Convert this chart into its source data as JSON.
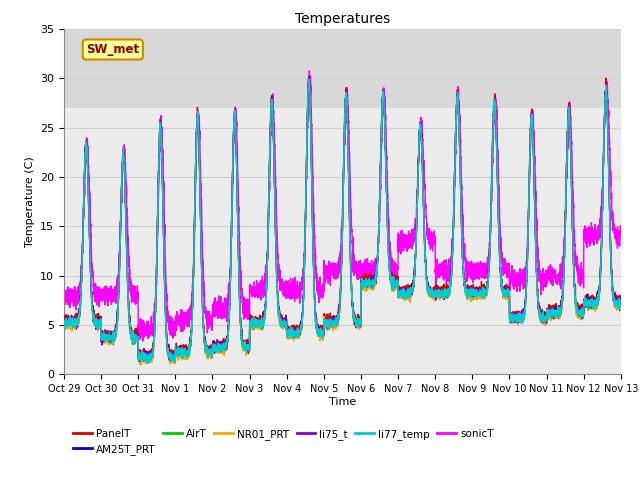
{
  "title": "Temperatures",
  "xlabel": "Time",
  "ylabel": "Temperature (C)",
  "ylim": [
    0,
    35
  ],
  "x_tick_labels": [
    "Oct 29",
    "Oct 30",
    "Oct 31",
    "Nov 1",
    "Nov 2",
    "Nov 3",
    "Nov 4",
    "Nov 5",
    "Nov 6",
    "Nov 7",
    "Nov 8",
    "Nov 9",
    "Nov 10",
    "Nov 11",
    "Nov 12",
    "Nov 13"
  ],
  "series_order": [
    "PanelT",
    "AM25T_PRT",
    "AirT",
    "NR01_PRT",
    "li75_t",
    "li77_temp",
    "sonicT"
  ],
  "series": {
    "PanelT": {
      "color": "#dd0000",
      "lw": 1.0
    },
    "AM25T_PRT": {
      "color": "#0000dd",
      "lw": 1.0
    },
    "AirT": {
      "color": "#00cc00",
      "lw": 1.0
    },
    "NR01_PRT": {
      "color": "#ffa500",
      "lw": 1.0
    },
    "li75_t": {
      "color": "#8800cc",
      "lw": 1.0
    },
    "li77_temp": {
      "color": "#00cccc",
      "lw": 1.0
    },
    "sonicT": {
      "color": "#ff00ff",
      "lw": 1.0
    }
  },
  "annotation_text": "SW_met",
  "annotation_color": "#8b0000",
  "annotation_bg": "#ffff99",
  "annotation_border": "#cc8800",
  "grid_color": "#d0d0d0",
  "plot_bg": "#ebebeb",
  "upper_band_bg": "#d8d8d8",
  "fig_bg": "#ffffff",
  "n_days": 15,
  "pts_per_day": 288,
  "day_max_values": [
    23.5,
    22.5,
    25.5,
    26.5,
    26.5,
    28.0,
    30.0,
    28.5,
    28.5,
    25.5,
    28.5,
    28.0,
    26.5,
    27.0,
    29.0
  ],
  "day_min_values": [
    5.5,
    4.0,
    2.0,
    2.5,
    3.0,
    5.5,
    4.5,
    5.5,
    9.5,
    8.5,
    8.5,
    8.5,
    6.0,
    6.5,
    7.5
  ],
  "sonic_min_values": [
    8.0,
    8.0,
    4.5,
    5.5,
    6.5,
    8.5,
    8.5,
    10.5,
    10.5,
    13.5,
    10.5,
    10.5,
    9.5,
    10.0,
    14.0
  ]
}
